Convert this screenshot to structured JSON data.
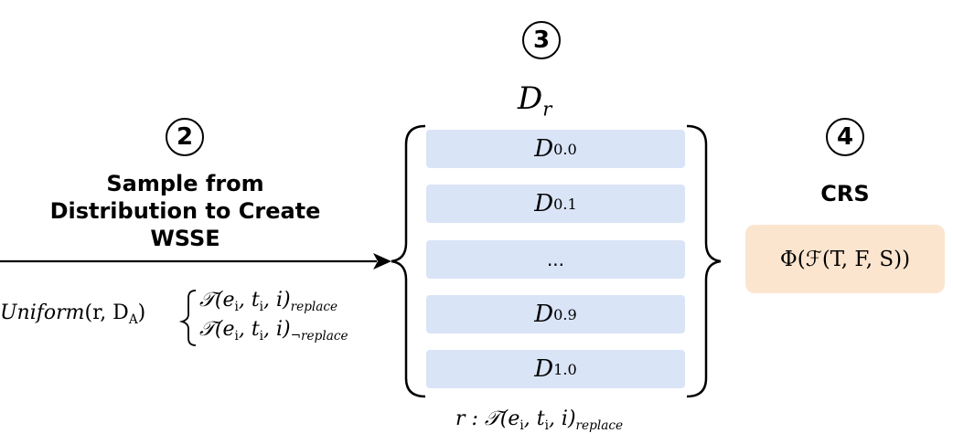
{
  "step2": {
    "number": "2",
    "title_line1": "Sample from",
    "title_line2": "Distribution to Create",
    "title_line3": "WSSE"
  },
  "step3": {
    "number": "3",
    "set_symbol": "D",
    "set_subscript": "r",
    "items": [
      {
        "symbol": "D",
        "subscript": "0.0"
      },
      {
        "symbol": "D",
        "subscript": "0.1"
      },
      {
        "symbol": "",
        "subscript": "",
        "text": "..."
      },
      {
        "symbol": "D",
        "subscript": "0.9"
      },
      {
        "symbol": "D",
        "subscript": "1.0"
      }
    ],
    "caption_prefix": "r : ",
    "caption_script": "𝒯",
    "caption_args": "(e",
    "caption_sub_i": "i",
    "caption_mid": ", t",
    "caption_end": ", i)",
    "caption_subscript": "replace"
  },
  "step4": {
    "number": "4",
    "title": "CRS",
    "formula": "Φ(ℱ(T, F, S))"
  },
  "sampling": {
    "func": "Uniform",
    "args_open": "(r, D",
    "args_sub": "A",
    "args_close": ")",
    "case1_script": "𝒯",
    "case1_body": "(e",
    "case1_sub_e": "i",
    "case1_mid": ", t",
    "case1_sub_t": "i",
    "case1_end": ", i)",
    "case1_subscript": "replace",
    "case2_script": "𝒯",
    "case2_body": "(e",
    "case2_sub_e": "i",
    "case2_mid": ", t",
    "case2_sub_t": "i",
    "case2_end": ", i)",
    "case2_subscript": "¬replace"
  }
}
